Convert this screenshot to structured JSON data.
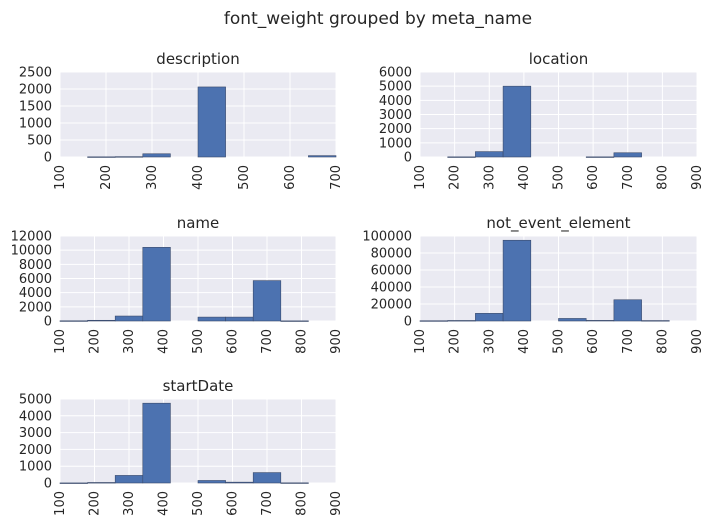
{
  "figure": {
    "title": "font_weight grouped by meta_name"
  },
  "colors": {
    "bar": "#4c72b0",
    "bar_edge": "#3a4a6b",
    "plot_bg": "#eaeaf2",
    "grid": "#ffffff",
    "text": "#262626"
  },
  "chart_data": [
    {
      "type": "bar",
      "title": "description",
      "xlim": [
        100,
        700
      ],
      "ylim": [
        0,
        2500
      ],
      "xticks": [
        100,
        200,
        300,
        400,
        500,
        600,
        700
      ],
      "yticks": [
        0,
        500,
        1000,
        1500,
        2000,
        2500
      ],
      "grid": true,
      "bins": [
        {
          "x0": 160,
          "x1": 220,
          "y": 5
        },
        {
          "x0": 220,
          "x1": 280,
          "y": 10
        },
        {
          "x0": 280,
          "x1": 340,
          "y": 95
        },
        {
          "x0": 340,
          "x1": 400,
          "y": 0
        },
        {
          "x0": 400,
          "x1": 460,
          "y": 2060
        },
        {
          "x0": 460,
          "x1": 520,
          "y": 0
        },
        {
          "x0": 520,
          "x1": 580,
          "y": 0
        },
        {
          "x0": 580,
          "x1": 640,
          "y": 0
        },
        {
          "x0": 640,
          "x1": 700,
          "y": 40
        }
      ]
    },
    {
      "type": "bar",
      "title": "location",
      "xlim": [
        100,
        900
      ],
      "ylim": [
        0,
        6000
      ],
      "xticks": [
        100,
        200,
        300,
        400,
        500,
        600,
        700,
        800,
        900
      ],
      "yticks": [
        0,
        1000,
        2000,
        3000,
        4000,
        5000,
        6000
      ],
      "grid": true,
      "bins": [
        {
          "x0": 180,
          "x1": 260,
          "y": 10
        },
        {
          "x0": 260,
          "x1": 340,
          "y": 380
        },
        {
          "x0": 340,
          "x1": 420,
          "y": 5000
        },
        {
          "x0": 420,
          "x1": 500,
          "y": 0
        },
        {
          "x0": 500,
          "x1": 580,
          "y": 0
        },
        {
          "x0": 580,
          "x1": 660,
          "y": 10
        },
        {
          "x0": 660,
          "x1": 740,
          "y": 300
        },
        {
          "x0": 740,
          "x1": 820,
          "y": 0
        }
      ]
    },
    {
      "type": "bar",
      "title": "name",
      "xlim": [
        100,
        900
      ],
      "ylim": [
        0,
        12000
      ],
      "xticks": [
        100,
        200,
        300,
        400,
        500,
        600,
        700,
        800,
        900
      ],
      "yticks": [
        0,
        2000,
        4000,
        6000,
        8000,
        10000,
        12000
      ],
      "grid": true,
      "bins": [
        {
          "x0": 100,
          "x1": 180,
          "y": 30
        },
        {
          "x0": 180,
          "x1": 260,
          "y": 100
        },
        {
          "x0": 260,
          "x1": 340,
          "y": 700
        },
        {
          "x0": 340,
          "x1": 420,
          "y": 10400
        },
        {
          "x0": 420,
          "x1": 500,
          "y": 0
        },
        {
          "x0": 500,
          "x1": 580,
          "y": 550
        },
        {
          "x0": 580,
          "x1": 660,
          "y": 550
        },
        {
          "x0": 660,
          "x1": 740,
          "y": 5700
        },
        {
          "x0": 740,
          "x1": 820,
          "y": 20
        }
      ]
    },
    {
      "type": "bar",
      "title": "not_event_element",
      "xlim": [
        100,
        900
      ],
      "ylim": [
        0,
        100000
      ],
      "xticks": [
        100,
        200,
        300,
        400,
        500,
        600,
        700,
        800,
        900
      ],
      "yticks": [
        0,
        20000,
        40000,
        60000,
        80000,
        100000
      ],
      "grid": true,
      "bins": [
        {
          "x0": 100,
          "x1": 180,
          "y": 300
        },
        {
          "x0": 180,
          "x1": 260,
          "y": 600
        },
        {
          "x0": 260,
          "x1": 340,
          "y": 9000
        },
        {
          "x0": 340,
          "x1": 420,
          "y": 95000
        },
        {
          "x0": 420,
          "x1": 500,
          "y": 0
        },
        {
          "x0": 500,
          "x1": 580,
          "y": 3000
        },
        {
          "x0": 580,
          "x1": 660,
          "y": 700
        },
        {
          "x0": 660,
          "x1": 740,
          "y": 25000
        },
        {
          "x0": 740,
          "x1": 820,
          "y": 500
        }
      ]
    },
    {
      "type": "bar",
      "title": "startDate",
      "xlim": [
        100,
        900
      ],
      "ylim": [
        0,
        5000
      ],
      "xticks": [
        100,
        200,
        300,
        400,
        500,
        600,
        700,
        800,
        900
      ],
      "yticks": [
        0,
        1000,
        2000,
        3000,
        4000,
        5000
      ],
      "grid": true,
      "bins": [
        {
          "x0": 100,
          "x1": 180,
          "y": 5
        },
        {
          "x0": 180,
          "x1": 260,
          "y": 30
        },
        {
          "x0": 260,
          "x1": 340,
          "y": 450
        },
        {
          "x0": 340,
          "x1": 420,
          "y": 4750
        },
        {
          "x0": 420,
          "x1": 500,
          "y": 0
        },
        {
          "x0": 500,
          "x1": 580,
          "y": 150
        },
        {
          "x0": 580,
          "x1": 660,
          "y": 50
        },
        {
          "x0": 660,
          "x1": 740,
          "y": 620
        },
        {
          "x0": 740,
          "x1": 820,
          "y": 10
        }
      ]
    }
  ]
}
